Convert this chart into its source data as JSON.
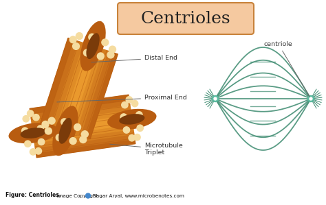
{
  "title": "Centrioles",
  "title_fontsize": 18,
  "title_box_color": "#F5C9A0",
  "title_box_edge": "#C8823A",
  "background_color": "#FFFFFF",
  "label_distal": "Distal End",
  "label_proximal": "Proximal End",
  "label_microtubule": "Microtubule\nTriplet",
  "label_centriole": "centriole",
  "figure_caption_bold": "Figure: Centrioles,",
  "figure_caption_normal": " Image Copyright ",
  "figure_caption_end": " Sagar Aryal, www.microbenotes.com",
  "orange_dark": "#B85C10",
  "orange_mid": "#D4750A",
  "orange_light": "#F0A030",
  "orange_lighter": "#F5B840",
  "orange_bead": "#F5DCA0",
  "brown_inner": "#7A3B0A",
  "green_line": "#3D8B70",
  "green_dot": "#5BBBA0",
  "label_color": "#333333",
  "arrow_color": "#666666",
  "copyright_dot": "#4488CC"
}
